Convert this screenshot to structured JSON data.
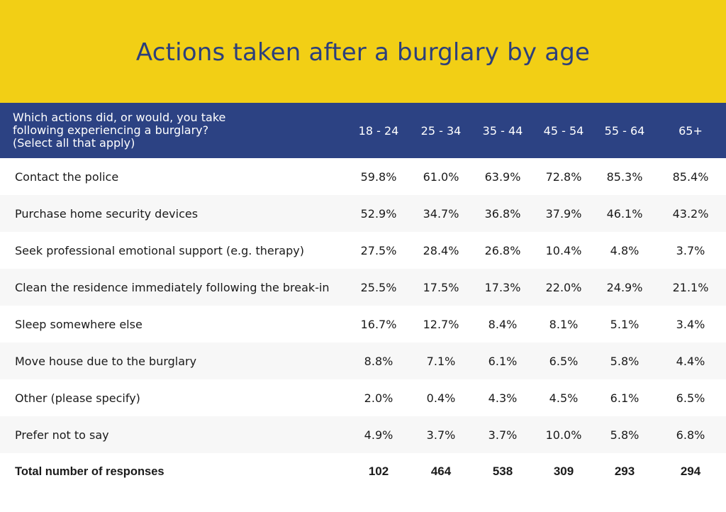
{
  "chart_data": {
    "type": "table",
    "title": "Actions taken after a burglary by age",
    "header_question": [
      "Which actions did, or would, you take",
      "following experiencing a burglary?",
      "(Select all that apply)"
    ],
    "columns": [
      "18 - 24",
      "25 - 34",
      "35 - 44",
      "45 - 54",
      "55 - 64",
      "65+"
    ],
    "rows": [
      {
        "label": "Contact the police",
        "values": [
          "59.8%",
          "61.0%",
          "63.9%",
          "72.8%",
          "85.3%",
          "85.4%"
        ]
      },
      {
        "label": "Purchase home security devices",
        "values": [
          "52.9%",
          "34.7%",
          "36.8%",
          "37.9%",
          "46.1%",
          "43.2%"
        ]
      },
      {
        "label": "Seek professional emotional support (e.g. therapy)",
        "values": [
          "27.5%",
          "28.4%",
          "26.8%",
          "10.4%",
          "4.8%",
          "3.7%"
        ]
      },
      {
        "label": "Clean the residence immediately following the break-in",
        "values": [
          "25.5%",
          "17.5%",
          "17.3%",
          "22.0%",
          "24.9%",
          "21.1%"
        ]
      },
      {
        "label": "Sleep somewhere else",
        "values": [
          "16.7%",
          "12.7%",
          "8.4%",
          "8.1%",
          "5.1%",
          "3.4%"
        ]
      },
      {
        "label": "Move house due to the burglary",
        "values": [
          "8.8%",
          "7.1%",
          "6.1%",
          "6.5%",
          "5.8%",
          "4.4%"
        ]
      },
      {
        "label": "Other (please specify)",
        "values": [
          "2.0%",
          "0.4%",
          "4.3%",
          "4.5%",
          "6.1%",
          "6.5%"
        ]
      },
      {
        "label": "Prefer not to say",
        "values": [
          "4.9%",
          "3.7%",
          "3.7%",
          "10.0%",
          "5.8%",
          "6.8%"
        ]
      }
    ],
    "total": {
      "label": "Total number of responses",
      "values": [
        "102",
        "464",
        "538",
        "309",
        "293",
        "294"
      ]
    }
  },
  "colors": {
    "banner": "#f2cf15",
    "title": "#2c3f7c",
    "header": "#2c4283",
    "stripe": "#f7f7f7"
  }
}
